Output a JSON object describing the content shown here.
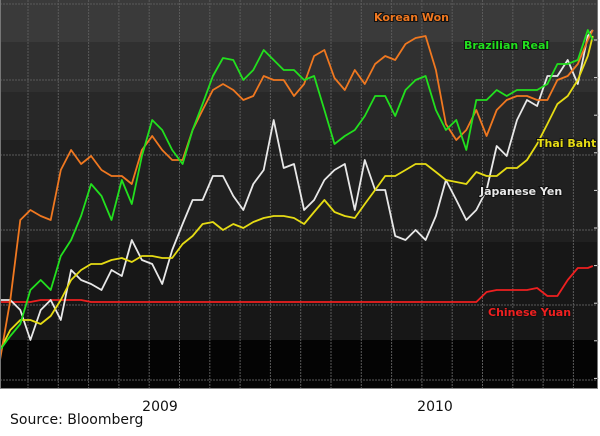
{
  "chart_data": {
    "type": "line",
    "title": "",
    "xlabel": "",
    "ylabel": "",
    "xlim": [
      2008.418,
      2010.56
    ],
    "ylim": [
      0,
      97
    ],
    "grid": true,
    "y_tick_labels_shown": false,
    "x_ticks": [
      {
        "label": "2009",
        "value": 2009.0
      },
      {
        "label": "2010",
        "value": 2010.0
      }
    ],
    "x": [
      2008.418,
      2008.455,
      2008.491,
      2008.527,
      2008.564,
      2008.6,
      2008.636,
      2008.673,
      2008.709,
      2008.745,
      2008.782,
      2008.818,
      2008.855,
      2008.891,
      2008.927,
      2008.964,
      2009.0,
      2009.036,
      2009.073,
      2009.109,
      2009.145,
      2009.182,
      2009.218,
      2009.255,
      2009.291,
      2009.327,
      2009.364,
      2009.4,
      2009.436,
      2009.473,
      2009.509,
      2009.545,
      2009.582,
      2009.618,
      2009.655,
      2009.691,
      2009.727,
      2009.764,
      2009.8,
      2009.836,
      2009.873,
      2009.909,
      2009.945,
      2009.982,
      2010.018,
      2010.055,
      2010.091,
      2010.127,
      2010.164,
      2010.2,
      2010.236,
      2010.273,
      2010.309,
      2010.345,
      2010.382,
      2010.418,
      2010.455,
      2010.491,
      2010.527,
      2010.545
    ],
    "series": [
      {
        "name": "Korean Won",
        "color": "#f07820",
        "values": [
          7,
          22,
          42,
          44.5,
          43,
          42,
          54.5,
          59.5,
          56,
          58,
          54.5,
          53,
          53,
          51,
          59.5,
          63,
          59.5,
          57,
          57,
          64.5,
          69.5,
          74.5,
          76,
          74.5,
          72,
          73,
          78,
          77,
          77,
          73,
          76,
          83,
          84.5,
          77.5,
          74.5,
          79.5,
          76,
          81,
          83,
          82,
          86,
          87.5,
          88,
          79.5,
          66,
          62,
          64.5,
          69.5,
          63,
          69.5,
          72,
          73,
          73,
          72,
          72,
          77,
          78,
          81,
          87,
          89.5
        ]
      },
      {
        "name": "Brazilian Real",
        "color": "#22e01e",
        "values": [
          9.5,
          13,
          16,
          24.5,
          27,
          24.5,
          33,
          37,
          43,
          51,
          48,
          42,
          52,
          46,
          58,
          67,
          64.5,
          59.5,
          56,
          64.5,
          71,
          78,
          82.5,
          82,
          77,
          79.5,
          84.5,
          82,
          79.5,
          79.5,
          77,
          78,
          69.5,
          61,
          63,
          64.5,
          68,
          73,
          73,
          68,
          74.5,
          77,
          78,
          69.5,
          64.5,
          67,
          59.5,
          72,
          72,
          74.5,
          73,
          74.5,
          74.5,
          74.5,
          76,
          81,
          81,
          82,
          89.5,
          87
        ]
      },
      {
        "name": "Thai Baht",
        "color": "#e6dc14",
        "values": [
          9.5,
          14.5,
          17,
          17,
          16,
          18,
          22,
          27,
          29.5,
          31,
          31,
          32,
          32.5,
          31.5,
          33,
          33,
          32.5,
          32.5,
          36,
          38,
          41,
          41.5,
          39.5,
          41,
          40,
          41.5,
          42.5,
          43,
          43,
          42.5,
          41,
          44,
          47,
          44,
          43,
          42.5,
          46,
          49.5,
          53,
          53,
          54.5,
          56,
          56,
          54,
          52,
          51.5,
          51,
          54,
          53,
          53,
          55,
          55,
          57,
          61,
          66,
          71,
          73,
          77,
          83,
          88
        ]
      },
      {
        "name": "Japanese Yen",
        "color": "#e8e8e8",
        "values": [
          22,
          22,
          19.5,
          12,
          19.5,
          22,
          17,
          29.5,
          27,
          26,
          24.5,
          29.5,
          28,
          37,
          32,
          31,
          26,
          34.5,
          41,
          47,
          47,
          53,
          53,
          48,
          44.5,
          51,
          54.5,
          67,
          55,
          56,
          44.5,
          47,
          52,
          54.5,
          56,
          44.5,
          57,
          49.5,
          49.5,
          38,
          37,
          39.5,
          37,
          43,
          52,
          47,
          42,
          44.5,
          49.5,
          60.5,
          58,
          67,
          72,
          70.5,
          78,
          78,
          82,
          76,
          88,
          89.5
        ]
      },
      {
        "name": "Chinese Yuan",
        "color": "#ee2020",
        "values": [
          21.5,
          21.5,
          21.5,
          21.5,
          22,
          22,
          22,
          22,
          22,
          21.5,
          21.5,
          21.5,
          21.5,
          21.5,
          21.5,
          21.5,
          21.5,
          21.5,
          21.5,
          21.5,
          21.5,
          21.5,
          21.5,
          21.5,
          21.5,
          21.5,
          21.5,
          21.5,
          21.5,
          21.5,
          21.5,
          21.5,
          21.5,
          21.5,
          21.5,
          21.5,
          21.5,
          21.5,
          21.5,
          21.5,
          21.5,
          21.5,
          21.5,
          21.5,
          21.5,
          21.5,
          21.5,
          21.5,
          24,
          24.5,
          24.5,
          24.5,
          24.5,
          25,
          23,
          23,
          27,
          30,
          30,
          30.5
        ]
      }
    ],
    "legend_placement": "inline labels at right"
  },
  "labels": {
    "korean_won": "Korean Won",
    "brazilian_real": "Brazilian Real",
    "thai_baht": "Thai Baht",
    "japanese_yen": "Japanese Yen",
    "chinese_yuan": "Chinese Yuan",
    "tick_2009": "2009",
    "tick_2010": "2010"
  },
  "source": "Source: Bloomberg"
}
